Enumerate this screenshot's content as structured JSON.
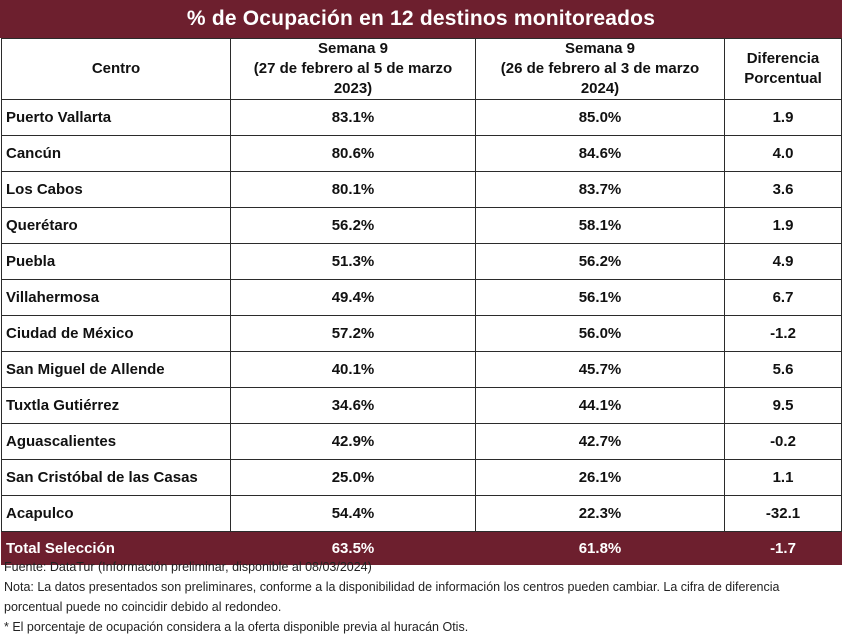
{
  "title": "% de Ocupación en 12 destinos monitoreados",
  "chart_data": {
    "type": "table",
    "columns": [
      "Centro",
      "Semana 9 (27 de febrero al 5 de marzo 2023)",
      "Semana 9 (26 de febrero al 3 de marzo 2024)",
      "Diferencia Porcentual"
    ],
    "headers": {
      "c1": "Centro",
      "c2_line1": "Semana 9",
      "c2_line2": "(27 de febrero al 5 de marzo",
      "c2_line3": "2023)",
      "c3_line1": "Semana 9",
      "c3_line2": "(26 de febrero al 3 de marzo",
      "c3_line3": "2024)",
      "c4_line1": "Diferencia",
      "c4_line2": "Porcentual"
    },
    "rows": [
      {
        "centro": "Puerto Vallarta",
        "s2023": "83.1%",
        "s2024": "85.0%",
        "dif": "1.9"
      },
      {
        "centro": "Cancún",
        "s2023": "80.6%",
        "s2024": "84.6%",
        "dif": "4.0"
      },
      {
        "centro": "Los Cabos",
        "s2023": "80.1%",
        "s2024": "83.7%",
        "dif": "3.6"
      },
      {
        "centro": "Querétaro",
        "s2023": "56.2%",
        "s2024": "58.1%",
        "dif": "1.9"
      },
      {
        "centro": "Puebla",
        "s2023": "51.3%",
        "s2024": "56.2%",
        "dif": "4.9"
      },
      {
        "centro": "Villahermosa",
        "s2023": "49.4%",
        "s2024": "56.1%",
        "dif": "6.7"
      },
      {
        "centro": "Ciudad de México",
        "s2023": "57.2%",
        "s2024": "56.0%",
        "dif": "-1.2"
      },
      {
        "centro": "San Miguel de Allende",
        "s2023": "40.1%",
        "s2024": "45.7%",
        "dif": "5.6"
      },
      {
        "centro": "Tuxtla Gutiérrez",
        "s2023": "34.6%",
        "s2024": "44.1%",
        "dif": "9.5"
      },
      {
        "centro": "Aguascalientes",
        "s2023": "42.9%",
        "s2024": "42.7%",
        "dif": "-0.2"
      },
      {
        "centro": "San Cristóbal de las Casas",
        "s2023": "25.0%",
        "s2024": "26.1%",
        "dif": "1.1"
      },
      {
        "centro": "Acapulco",
        "s2023": "54.4%",
        "s2024": "22.3%",
        "dif": "-32.1"
      }
    ],
    "total": {
      "centro": "Total Selección",
      "s2023": "63.5%",
      "s2024": "61.8%",
      "dif": "-1.7"
    }
  },
  "notes": {
    "source": "Fuente: DataTur (Información preliminar, disponible al 08/03/2024)",
    "note": "Nota: La datos presentados son preliminares, conforme a la disponibilidad de información los centros pueden cambiar. La cifra de diferencia porcentual puede no coincidir debido al redondeo.",
    "footnote": "* El porcentaje de ocupación considera a la oferta disponible previa al huracán Otis."
  },
  "colors": {
    "accent": "#6d1f2e",
    "accent_text": "#ffffff",
    "border": "#2b2b2b"
  }
}
